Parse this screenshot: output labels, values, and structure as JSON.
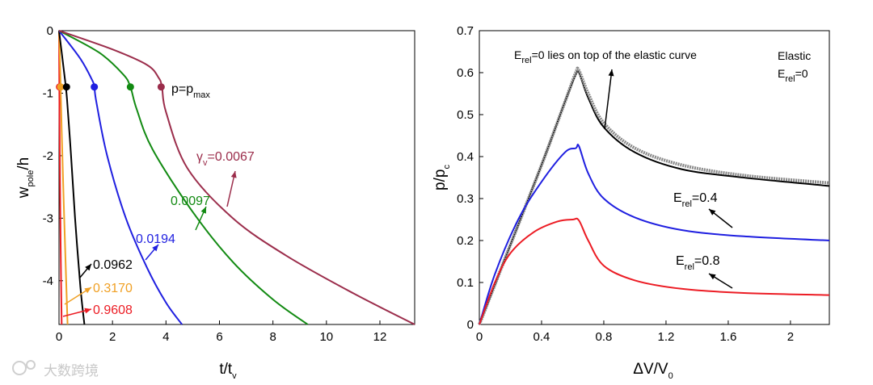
{
  "chart_data": [
    {
      "type": "line",
      "xlabel": "t/t",
      "xlabel_sub": "v",
      "ylabel": "w",
      "ylabel_sub": "pole",
      "ylabel_suffix": "/h",
      "xlim": [
        0,
        13.3
      ],
      "ylim": [
        -4.7,
        0
      ],
      "xticks": [
        "0",
        "2",
        "4",
        "6",
        "8",
        "10",
        "12"
      ],
      "yticks": [
        "0",
        "-1",
        "-2",
        "-3",
        "-4"
      ],
      "annotation_pmax": {
        "text": "p=p",
        "sub": "max"
      },
      "gamma_label": {
        "symbol": "γ",
        "sub": "v",
        "suffix": "=0.0067"
      },
      "series": [
        {
          "name": "0.9608",
          "color": "#ec1c24",
          "x": [
            0,
            0.02,
            0.04,
            0.06,
            0.08,
            0.1
          ],
          "y": [
            0,
            -1.5,
            -2.5,
            -3.4,
            -4.1,
            -4.7
          ],
          "marker": {
            "x": 0.02,
            "y": -0.9
          }
        },
        {
          "name": "0.3170",
          "color": "#f0a024",
          "x": [
            0,
            0.05,
            0.1,
            0.18,
            0.26,
            0.32
          ],
          "y": [
            0,
            -0.7,
            -1.6,
            -2.8,
            -3.9,
            -4.7
          ],
          "marker": {
            "x": 0.06,
            "y": -0.9
          }
        },
        {
          "name": "0.0962",
          "color": "#000000",
          "x": [
            0,
            0.2,
            0.3,
            0.45,
            0.6,
            0.8,
            0.95
          ],
          "y": [
            0,
            -0.7,
            -1.1,
            -2.0,
            -3.0,
            -4.1,
            -4.7
          ],
          "marker": {
            "x": 0.28,
            "y": -0.9
          }
        },
        {
          "name": "0.0194",
          "color": "#1f1fe0",
          "x": [
            0,
            0.8,
            1.25,
            1.32,
            1.4,
            1.8,
            2.5,
            3.3,
            4.0,
            4.6
          ],
          "y": [
            0,
            -0.45,
            -0.8,
            -0.9,
            -1.15,
            -2.0,
            -3.0,
            -3.8,
            -4.35,
            -4.7
          ],
          "marker": {
            "x": 1.32,
            "y": -0.9
          }
        },
        {
          "name": "0.0097",
          "color": "#128a12",
          "x": [
            0,
            1.5,
            2.4,
            2.67,
            2.9,
            3.5,
            5.0,
            6.5,
            8.0,
            9.3
          ],
          "y": [
            0,
            -0.35,
            -0.7,
            -0.9,
            -1.25,
            -1.9,
            -2.9,
            -3.7,
            -4.3,
            -4.7
          ],
          "marker": {
            "x": 2.67,
            "y": -0.9
          }
        },
        {
          "name": "0.0067",
          "color": "#9b2d4b",
          "x": [
            0,
            2.0,
            3.3,
            3.72,
            3.85,
            4.0,
            4.8,
            6.5,
            8.5,
            11.0,
            13.3
          ],
          "y": [
            0,
            -0.3,
            -0.55,
            -0.75,
            -0.9,
            -1.3,
            -2.2,
            -3.0,
            -3.6,
            -4.2,
            -4.7
          ],
          "marker": {
            "x": 3.82,
            "y": -0.9
          }
        }
      ]
    },
    {
      "type": "line",
      "xlabel": "ΔV/V",
      "xlabel_sub": "0",
      "ylabel": "p/p",
      "ylabel_sub": "c",
      "xlim": [
        0,
        2.25
      ],
      "ylim": [
        0,
        0.7
      ],
      "xticks": [
        "0",
        "0.4",
        "0.8",
        "1.2",
        "1.6",
        "2"
      ],
      "yticks": [
        "0",
        "0.1",
        "0.2",
        "0.3",
        "0.4",
        "0.5",
        "0.6",
        "0.7"
      ],
      "legend": {
        "line1": "Elastic",
        "line2": "E",
        "line2_sub": "rel",
        "line2_suffix": "=0"
      },
      "annotations": [
        {
          "pre": "E",
          "sub": "rel",
          "post": "=0 lies on top of the elastic curve"
        },
        {
          "pre": "E",
          "sub": "rel",
          "post": "=0.4"
        },
        {
          "pre": "E",
          "sub": "rel",
          "post": "=0.8"
        }
      ],
      "series": [
        {
          "name": "Elastic",
          "color": "#000000",
          "x": [
            0,
            0.2,
            0.4,
            0.55,
            0.62,
            0.64,
            0.7,
            0.8,
            1.0,
            1.3,
            1.7,
            2.25
          ],
          "y": [
            0,
            0.19,
            0.38,
            0.53,
            0.595,
            0.6,
            0.54,
            0.47,
            0.41,
            0.37,
            0.35,
            0.33
          ]
        },
        {
          "name": "E_rel=0",
          "color": "#8a8a8a",
          "x": [
            0,
            0.2,
            0.4,
            0.55,
            0.62,
            0.64,
            0.7,
            0.8,
            1.0,
            1.3,
            1.7,
            2.25
          ],
          "y": [
            0,
            0.19,
            0.38,
            0.53,
            0.6,
            0.605,
            0.55,
            0.48,
            0.42,
            0.38,
            0.355,
            0.337
          ]
        },
        {
          "name": "E_rel=0.4",
          "color": "#1f1fe0",
          "x": [
            0,
            0.1,
            0.25,
            0.4,
            0.55,
            0.62,
            0.64,
            0.7,
            0.8,
            1.0,
            1.3,
            1.7,
            2.25
          ],
          "y": [
            0,
            0.12,
            0.25,
            0.34,
            0.41,
            0.42,
            0.425,
            0.36,
            0.3,
            0.255,
            0.225,
            0.21,
            0.2
          ]
        },
        {
          "name": "E_rel=0.8",
          "color": "#ec1c24",
          "x": [
            0,
            0.1,
            0.2,
            0.35,
            0.5,
            0.6,
            0.64,
            0.7,
            0.8,
            1.0,
            1.3,
            1.7,
            2.25
          ],
          "y": [
            0,
            0.1,
            0.17,
            0.22,
            0.245,
            0.25,
            0.248,
            0.2,
            0.14,
            0.105,
            0.085,
            0.075,
            0.07
          ]
        }
      ]
    }
  ],
  "watermark": "大数跨境"
}
